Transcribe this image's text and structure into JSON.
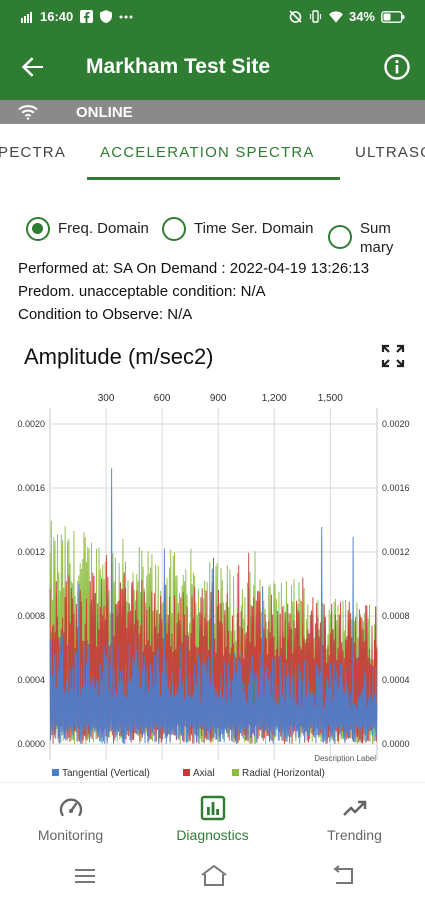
{
  "status_bar": {
    "time": "16:40",
    "battery": "34%"
  },
  "app_bar": {
    "title": "Markham Test Site",
    "back_icon": "arrow-left-icon",
    "info_icon": "info-circle-icon"
  },
  "connection": {
    "icon": "wifi-icon",
    "status": "ONLINE"
  },
  "tabs": [
    {
      "label": "PECTRA",
      "active": false
    },
    {
      "label": "ACCELERATION SPECTRA",
      "active": true
    },
    {
      "label": "ULTRASO",
      "active": false
    }
  ],
  "domain_options": [
    {
      "label": "Freq. Domain",
      "selected": true
    },
    {
      "label": "Time Ser. Domain",
      "selected": false
    },
    {
      "label_line1": "Sum",
      "label_line2": "mary",
      "selected": false
    }
  ],
  "details": {
    "performed_at": "Performed at: SA On Demand : 2022-04-19 13:26:13",
    "predominant": "Predom. unacceptable condition: N/A",
    "condition": "Condition to Observe: N/A"
  },
  "chart": {
    "title": "Amplitude (m/sec2)",
    "expand_icon": "expand-icon",
    "description_label": "Description Label"
  },
  "chart_data": {
    "type": "line",
    "x_ticks": [
      "300",
      "600",
      "900",
      "1,200",
      "1,500"
    ],
    "x_tick_values": [
      300,
      600,
      900,
      1200,
      1500
    ],
    "xlim": [
      0,
      1750
    ],
    "y_ticks": [
      "0.0000",
      "0.0004",
      "0.0008",
      "0.0012",
      "0.0016",
      "0.0020"
    ],
    "y_tick_values": [
      0,
      0.0004,
      0.0008,
      0.0012,
      0.0016,
      0.002
    ],
    "ylim": [
      -0.0001,
      0.0021
    ],
    "grid": true,
    "legend_position": "bottom-left",
    "series": [
      {
        "name": "Tangential (Vertical)",
        "color": "#4a7fd0",
        "approx_range": [
          0,
          0.00195
        ]
      },
      {
        "name": "Axial",
        "color": "#c83a3a",
        "approx_range": [
          0,
          0.0013
        ]
      },
      {
        "name": "Radial (Horizontal)",
        "color": "#8dbb3f",
        "approx_range": [
          0,
          0.0015
        ]
      }
    ]
  },
  "bottom_nav": [
    {
      "label": "Monitoring",
      "icon": "gauge-icon",
      "active": false
    },
    {
      "label": "Diagnostics",
      "icon": "bar-chart-icon",
      "active": true
    },
    {
      "label": "Trending",
      "icon": "trending-up-icon",
      "active": false
    }
  ],
  "system_nav": {
    "menu_icon": "menu-icon",
    "home_icon": "home-icon",
    "back_icon": "back-icon"
  },
  "colors": {
    "primary": "#2e7d32",
    "online_bar": "#8a8a8a",
    "tangential": "#4a7fd0",
    "axial": "#c83a3a",
    "radial": "#8dbb3f"
  }
}
